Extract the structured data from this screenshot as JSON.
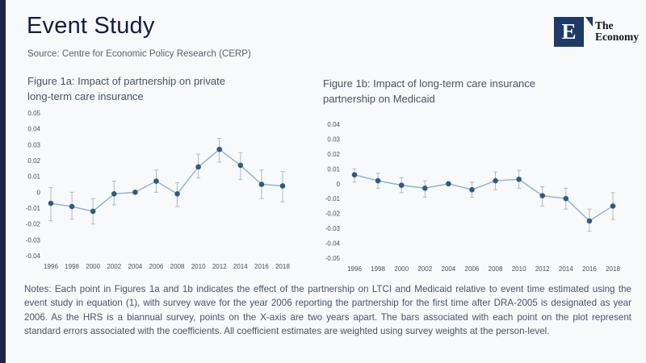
{
  "header": {
    "title": "Event Study",
    "source": "Source: Centre for Economic Policy Research (CERP)"
  },
  "logo": {
    "letter": "E",
    "name_line1": "The",
    "name_line2": "Economy"
  },
  "footer": {
    "notes": "Notes: Each point in Figures 1a and 1b indicates the effect of the partnership on LTCI and Medicaid relative to event time estimated using the event study in equation (1), with survey wave for the year 2006 reporting the partnership for the first time after DRA-2005 is designated as year 2006. As the HRS is a biannual survey, points on the X-axis are two years apart. The bars associated with each point on the plot represent standard errors associated with the coefficients. All coefficient estimates are weighted using survey weights at the person-level."
  },
  "colors": {
    "accent_bar": "#1e2749",
    "title_text": "#141c44",
    "logo_square": "#1e3a66",
    "figure_title": "#44546a",
    "point": "#2b5c88",
    "line": "#8ab2cb",
    "whisker": "#b3b6bc",
    "axis_label": "#4d4f55"
  },
  "chart_data": [
    {
      "type": "scatter",
      "title": "Figure 1a: Impact of partnership on private long-term care insurance",
      "xlabel": "",
      "ylabel": "",
      "grid": false,
      "legend": false,
      "x": [
        1996,
        1998,
        2000,
        2002,
        2004,
        2006,
        2008,
        2010,
        2012,
        2014,
        2016,
        2018
      ],
      "series": [
        {
          "name": "coefficient",
          "values": [
            -0.007,
            -0.009,
            -0.012,
            -0.001,
            0,
            0.007,
            -0.001,
            0.016,
            0.027,
            0.017,
            0.005,
            0.004
          ],
          "error_low": [
            -0.018,
            -0.017,
            -0.02,
            -0.008,
            null,
            0.0,
            -0.009,
            0.009,
            0.019,
            0.008,
            -0.004,
            -0.006
          ],
          "error_high": [
            0.003,
            0.0,
            -0.004,
            0.007,
            null,
            0.014,
            0.006,
            0.024,
            0.034,
            0.025,
            0.014,
            0.013
          ]
        }
      ],
      "ylim": [
        -0.04,
        0.05
      ],
      "yticks": [
        0.05,
        0.04,
        0.03,
        0.02,
        0.01,
        0,
        -0.01,
        -0.02,
        -0.03,
        -0.04
      ]
    },
    {
      "type": "scatter",
      "title": "Figure 1b: Impact of long-term care insurance partnership on Medicaid",
      "xlabel": "",
      "ylabel": "",
      "grid": false,
      "legend": false,
      "x": [
        1996,
        1998,
        2000,
        2002,
        2004,
        2006,
        2008,
        2010,
        2012,
        2014,
        2016,
        2018
      ],
      "series": [
        {
          "name": "coefficient",
          "values": [
            0.006,
            0.002,
            -0.001,
            -0.003,
            0,
            -0.004,
            0.002,
            0.003,
            -0.008,
            -0.01,
            -0.025,
            -0.015
          ],
          "error_low": [
            0.001,
            -0.003,
            -0.006,
            -0.009,
            null,
            -0.009,
            -0.004,
            -0.003,
            -0.015,
            -0.017,
            -0.032,
            -0.024
          ],
          "error_high": [
            0.01,
            0.007,
            0.004,
            0.002,
            null,
            0.001,
            0.008,
            0.009,
            -0.002,
            -0.003,
            -0.017,
            -0.006
          ]
        }
      ],
      "ylim": [
        -0.05,
        0.04
      ],
      "yticks": [
        0.04,
        0.03,
        0.02,
        0.01,
        0,
        -0.01,
        -0.02,
        -0.03,
        -0.04,
        -0.05
      ]
    }
  ]
}
